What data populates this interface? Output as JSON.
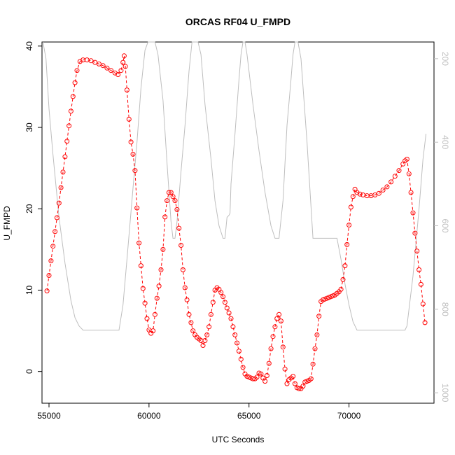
{
  "chart_data": {
    "type": "line",
    "title": "ORCAS RF04 U_FMPD",
    "xlabel": "UTC Seconds",
    "ylabel": "U_FMPD",
    "xlim": [
      54650,
      74250
    ],
    "ylim": [
      -3.9,
      40.5
    ],
    "xticks": [
      "55000",
      "60000",
      "65000",
      "70000"
    ],
    "yticks": [
      "0",
      "10",
      "20",
      "30",
      "40"
    ],
    "y2ticks": [
      "200",
      "400",
      "600",
      "800",
      "1000"
    ],
    "y2lim": [
      1025,
      160
    ],
    "grid": false,
    "colors": {
      "primary": "#ff0000",
      "secondary": "#bebebe"
    },
    "series": [
      {
        "style": "points-dashed-line",
        "color": "#ff0000",
        "points": [
          [
            54900,
            9.9
          ],
          [
            55000,
            11.8
          ],
          [
            55100,
            13.6
          ],
          [
            55200,
            15.4
          ],
          [
            55300,
            17.2
          ],
          [
            55400,
            18.9
          ],
          [
            55500,
            20.7
          ],
          [
            55600,
            22.6
          ],
          [
            55700,
            24.5
          ],
          [
            55800,
            26.4
          ],
          [
            55900,
            28.3
          ],
          [
            56000,
            30.2
          ],
          [
            56100,
            32.0
          ],
          [
            56200,
            33.8
          ],
          [
            56300,
            35.5
          ],
          [
            56400,
            37.0
          ],
          [
            56550,
            38.1
          ],
          [
            56700,
            38.3
          ],
          [
            56900,
            38.3
          ],
          [
            57100,
            38.2
          ],
          [
            57300,
            38.0
          ],
          [
            57500,
            37.8
          ],
          [
            57700,
            37.6
          ],
          [
            57900,
            37.3
          ],
          [
            58100,
            37.0
          ],
          [
            58300,
            36.7
          ],
          [
            58450,
            36.5
          ],
          [
            58600,
            37.0
          ],
          [
            58700,
            38.0
          ],
          [
            58760,
            38.8
          ],
          [
            58820,
            37.5
          ],
          [
            58900,
            34.6
          ],
          [
            59000,
            31.0
          ],
          [
            59100,
            28.2
          ],
          [
            59200,
            26.7
          ],
          [
            59300,
            24.7
          ],
          [
            59400,
            20.1
          ],
          [
            59500,
            15.8
          ],
          [
            59600,
            13.0
          ],
          [
            59700,
            10.2
          ],
          [
            59800,
            8.4
          ],
          [
            59900,
            6.5
          ],
          [
            60000,
            5.1
          ],
          [
            60100,
            4.7
          ],
          [
            60200,
            5.0
          ],
          [
            60300,
            7.0
          ],
          [
            60400,
            9.0
          ],
          [
            60500,
            10.5
          ],
          [
            60600,
            12.5
          ],
          [
            60700,
            15.0
          ],
          [
            60800,
            19.0
          ],
          [
            60900,
            21.0
          ],
          [
            61000,
            22.0
          ],
          [
            61100,
            22.0
          ],
          [
            61200,
            21.5
          ],
          [
            61300,
            21.0
          ],
          [
            61400,
            19.9
          ],
          [
            61500,
            17.6
          ],
          [
            61600,
            15.5
          ],
          [
            61700,
            12.5
          ],
          [
            61800,
            10.3
          ],
          [
            61900,
            8.8
          ],
          [
            62000,
            7.0
          ],
          [
            62100,
            6.0
          ],
          [
            62200,
            5.0
          ],
          [
            62300,
            4.5
          ],
          [
            62400,
            4.2
          ],
          [
            62500,
            4.0
          ],
          [
            62600,
            3.8
          ],
          [
            62700,
            3.2
          ],
          [
            62800,
            3.8
          ],
          [
            62900,
            4.5
          ],
          [
            63000,
            5.5
          ],
          [
            63100,
            7.0
          ],
          [
            63200,
            8.5
          ],
          [
            63300,
            10.0
          ],
          [
            63400,
            10.3
          ],
          [
            63500,
            10.1
          ],
          [
            63600,
            9.7
          ],
          [
            63700,
            9.2
          ],
          [
            63800,
            8.5
          ],
          [
            63900,
            7.8
          ],
          [
            64000,
            7.2
          ],
          [
            64100,
            6.5
          ],
          [
            64200,
            5.5
          ],
          [
            64300,
            4.5
          ],
          [
            64400,
            3.5
          ],
          [
            64500,
            2.5
          ],
          [
            64600,
            1.5
          ],
          [
            64700,
            0.5
          ],
          [
            64800,
            -0.3
          ],
          [
            64900,
            -0.6
          ],
          [
            65000,
            -0.7
          ],
          [
            65100,
            -0.8
          ],
          [
            65200,
            -0.9
          ],
          [
            65300,
            -0.9
          ],
          [
            65400,
            -0.7
          ],
          [
            65500,
            -0.2
          ],
          [
            65600,
            -0.3
          ],
          [
            65700,
            -0.8
          ],
          [
            65800,
            -1.2
          ],
          [
            65900,
            -0.5
          ],
          [
            66000,
            1.0
          ],
          [
            66100,
            2.8
          ],
          [
            66200,
            4.3
          ],
          [
            66300,
            5.5
          ],
          [
            66400,
            6.5
          ],
          [
            66500,
            7.0
          ],
          [
            66600,
            6.2
          ],
          [
            66700,
            3.0
          ],
          [
            66800,
            0.3
          ],
          [
            66900,
            -1.5
          ],
          [
            67000,
            -1.0
          ],
          [
            67100,
            -0.8
          ],
          [
            67200,
            -0.6
          ],
          [
            67300,
            -1.5
          ],
          [
            67400,
            -2.0
          ],
          [
            67500,
            -2.1
          ],
          [
            67600,
            -2.1
          ],
          [
            67700,
            -1.8
          ],
          [
            67800,
            -1.3
          ],
          [
            67900,
            -1.2
          ],
          [
            68000,
            -1.1
          ],
          [
            68100,
            -0.9
          ],
          [
            68200,
            0.9
          ],
          [
            68300,
            2.8
          ],
          [
            68400,
            4.5
          ],
          [
            68500,
            6.8
          ],
          [
            68600,
            8.6
          ],
          [
            68700,
            8.8
          ],
          [
            68800,
            8.9
          ],
          [
            68900,
            9.0
          ],
          [
            69000,
            9.1
          ],
          [
            69100,
            9.2
          ],
          [
            69200,
            9.3
          ],
          [
            69300,
            9.4
          ],
          [
            69400,
            9.6
          ],
          [
            69500,
            9.8
          ],
          [
            69600,
            10.1
          ],
          [
            69700,
            11.3
          ],
          [
            69800,
            13.0
          ],
          [
            69900,
            15.6
          ],
          [
            70000,
            18.0
          ],
          [
            70100,
            20.2
          ],
          [
            70200,
            21.5
          ],
          [
            70300,
            22.4
          ],
          [
            70400,
            22.0
          ],
          [
            70550,
            21.8
          ],
          [
            70700,
            21.7
          ],
          [
            70900,
            21.6
          ],
          [
            71100,
            21.6
          ],
          [
            71300,
            21.7
          ],
          [
            71500,
            21.9
          ],
          [
            71700,
            22.3
          ],
          [
            71900,
            22.7
          ],
          [
            72100,
            23.3
          ],
          [
            72300,
            24.0
          ],
          [
            72500,
            24.7
          ],
          [
            72700,
            25.5
          ],
          [
            72800,
            25.9
          ],
          [
            72900,
            26.1
          ],
          [
            73000,
            24.3
          ],
          [
            73100,
            22.0
          ],
          [
            73200,
            19.5
          ],
          [
            73300,
            17.0
          ],
          [
            73400,
            14.8
          ],
          [
            73500,
            12.5
          ],
          [
            73600,
            10.7
          ],
          [
            73700,
            8.3
          ],
          [
            73800,
            6.0
          ]
        ]
      },
      {
        "style": "line",
        "color": "#bebebe",
        "axis": "right",
        "points": [
          [
            54700,
            160
          ],
          [
            54850,
            200
          ],
          [
            55000,
            320
          ],
          [
            55200,
            430
          ],
          [
            55500,
            580
          ],
          [
            55800,
            690
          ],
          [
            56100,
            780
          ],
          [
            56300,
            820
          ],
          [
            56500,
            840
          ],
          [
            56700,
            850
          ],
          [
            58300,
            850
          ],
          [
            58500,
            850
          ],
          [
            58700,
            790
          ],
          [
            58900,
            680
          ],
          [
            59200,
            510
          ],
          [
            59400,
            400
          ],
          [
            59600,
            270
          ],
          [
            59800,
            180
          ],
          [
            59950,
            160
          ],
          [
            60300,
            160
          ],
          [
            60450,
            190
          ],
          [
            60700,
            300
          ],
          [
            60900,
            450
          ],
          [
            61100,
            590
          ],
          [
            61200,
            630
          ],
          [
            61300,
            630
          ],
          [
            61400,
            590
          ],
          [
            61600,
            470
          ],
          [
            61800,
            360
          ],
          [
            62000,
            230
          ],
          [
            62150,
            160
          ],
          [
            62450,
            160
          ],
          [
            62600,
            190
          ],
          [
            62800,
            310
          ],
          [
            63100,
            440
          ],
          [
            63300,
            540
          ],
          [
            63500,
            600
          ],
          [
            63700,
            630
          ],
          [
            63800,
            630
          ],
          [
            63900,
            580
          ],
          [
            64000,
            575
          ],
          [
            64050,
            570
          ],
          [
            64100,
            500
          ],
          [
            64300,
            380
          ],
          [
            64500,
            250
          ],
          [
            64600,
            190
          ],
          [
            64700,
            160
          ],
          [
            64800,
            160
          ],
          [
            64900,
            190
          ],
          [
            65200,
            310
          ],
          [
            65500,
            420
          ],
          [
            65800,
            520
          ],
          [
            66100,
            600
          ],
          [
            66300,
            630
          ],
          [
            66500,
            630
          ],
          [
            66700,
            540
          ],
          [
            66900,
            360
          ],
          [
            67100,
            250
          ],
          [
            67200,
            190
          ],
          [
            67300,
            160
          ],
          [
            67450,
            160
          ],
          [
            67600,
            200
          ],
          [
            67900,
            400
          ],
          [
            68200,
            630
          ],
          [
            69000,
            630
          ],
          [
            69400,
            630
          ],
          [
            69600,
            680
          ],
          [
            69800,
            740
          ],
          [
            70000,
            790
          ],
          [
            70200,
            830
          ],
          [
            70400,
            850
          ],
          [
            72800,
            850
          ],
          [
            72900,
            840
          ],
          [
            73200,
            720
          ],
          [
            73500,
            560
          ],
          [
            73700,
            440
          ],
          [
            73850,
            380
          ]
        ]
      }
    ]
  }
}
